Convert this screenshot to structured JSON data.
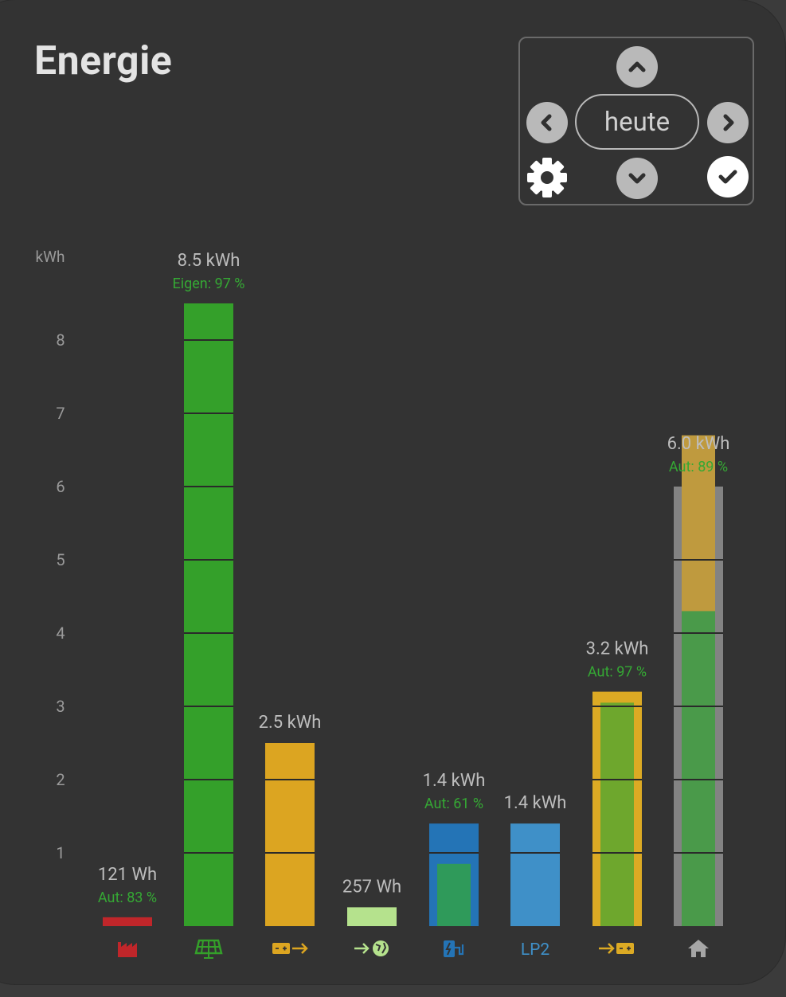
{
  "header": {
    "title": "Energie"
  },
  "nav": {
    "period_label": "heute"
  },
  "chart_data": {
    "type": "bar",
    "ylabel": "kWh",
    "ylim": [
      0,
      9.1
    ],
    "yticks": [
      1,
      2,
      3,
      4,
      5,
      6,
      7,
      8
    ],
    "bars": [
      {
        "key": "evu",
        "icon": "factory-icon",
        "value": 0.121,
        "value_label": "121 Wh",
        "sub_label": "Aut: 83 %",
        "color": "#c0262a"
      },
      {
        "key": "pv",
        "icon": "solar-panel-icon",
        "value": 8.5,
        "value_label": "8.5 kWh",
        "sub_label": "Eigen: 97 %",
        "color": "#34a02a"
      },
      {
        "key": "battery-out",
        "icon": "battery-discharge-icon",
        "value": 2.5,
        "value_label": "2.5 kWh",
        "sub_label": "",
        "color": "#dca521"
      },
      {
        "key": "grid-export",
        "icon": "grid-export-icon",
        "value": 0.257,
        "value_label": "257 Wh",
        "sub_label": "",
        "color": "#b5e28d"
      },
      {
        "key": "lp1",
        "icon": "ev-charger-icon",
        "value": 1.4,
        "value_label": "1.4 kWh",
        "sub_label": "Aut: 61 %",
        "color": "#2474b6",
        "inner_value": 0.85,
        "inner_color": "#2f9a5a"
      },
      {
        "key": "lp2",
        "icon": "",
        "category": "LP2",
        "value": 1.4,
        "value_label": "1.4 kWh",
        "sub_label": "",
        "color": "#3f90c8"
      },
      {
        "key": "battery-in",
        "icon": "battery-charge-icon",
        "value": 3.2,
        "value_label": "3.2 kWh",
        "sub_label": "Aut: 97 %",
        "color": "#dcaa24",
        "inner_value": 3.05,
        "inner_color": "#6ea72d"
      },
      {
        "key": "house",
        "icon": "house-icon",
        "value": 6.0,
        "value_label": "6.0 kWh",
        "sub_label": "Aut: 89 %",
        "color": "#838383",
        "inner_value": 6.7,
        "inner_color": "#bf9a3e",
        "inner2_value": 4.3,
        "inner2_color": "#4a9a4a"
      }
    ]
  },
  "colors": {
    "card_bg": "#333333",
    "label_grey": "#bdbdbd",
    "aut_green": "#35a834",
    "tick_grey": "#9a9a9a"
  }
}
